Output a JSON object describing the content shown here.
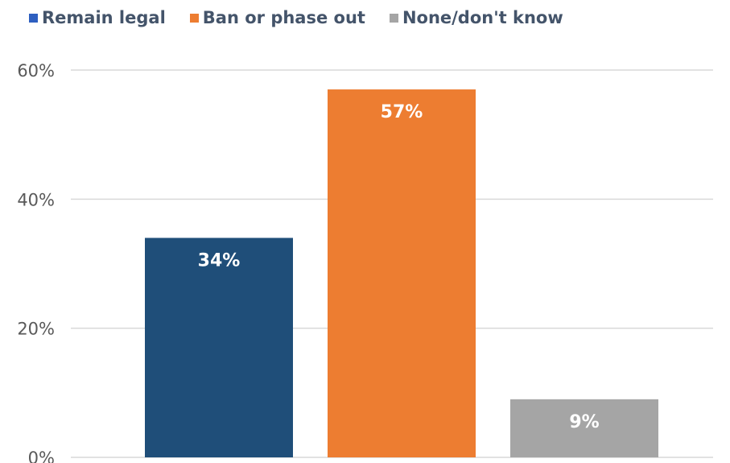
{
  "chart_data": {
    "type": "bar",
    "categories": [
      "Remain legal",
      "Ban or phase out",
      "None/don't know"
    ],
    "values": [
      34,
      57,
      9
    ],
    "data_labels": [
      "34%",
      "57%",
      "9%"
    ],
    "colors": [
      "#1f4e79",
      "#ed7d31",
      "#a5a5a5"
    ],
    "legend": [
      {
        "label": "Remain legal",
        "color": "#2e5fc0"
      },
      {
        "label": "Ban or phase out",
        "color": "#ed7d31"
      },
      {
        "label": "None/don't know",
        "color": "#a5a5a5"
      }
    ],
    "legend_position": "top-left",
    "y_ticks": [
      "0%",
      "20%",
      "40%",
      "60%"
    ],
    "y_tick_values": [
      0,
      20,
      40,
      60
    ],
    "ylim": [
      0,
      60
    ],
    "grid": true
  }
}
